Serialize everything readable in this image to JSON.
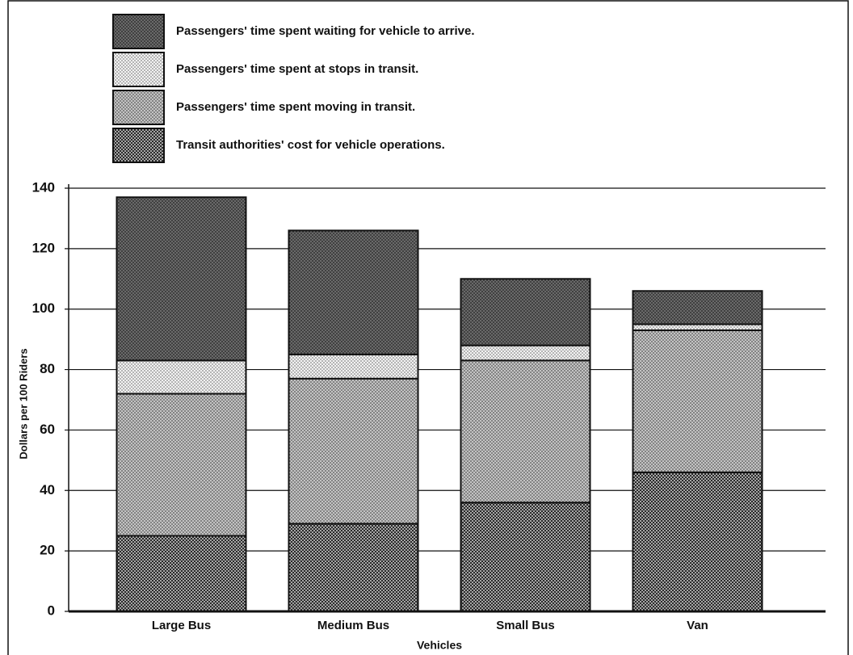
{
  "chart_data": {
    "type": "stacked_bar",
    "categories": [
      "Large Bus",
      "Medium Bus",
      "Small Bus",
      "Van"
    ],
    "series": [
      {
        "name": "Transit authorities' cost for vehicle operations.",
        "color": "#2a2a2a",
        "values": [
          25,
          29,
          36,
          46
        ]
      },
      {
        "name": "Passengers' time spent moving in transit.",
        "color": "#c4c4c4",
        "values": [
          47,
          48,
          47,
          47
        ]
      },
      {
        "name": "Passengers' time spent at stops in transit.",
        "color": "#f2f2f2",
        "values": [
          11,
          8,
          5,
          2
        ]
      },
      {
        "name": "Passengers' time spent waiting for vehicle to arrive.",
        "color": "#6a6a6a",
        "values": [
          54,
          41,
          22,
          11
        ]
      }
    ],
    "y_label": "Dollars per 100 Riders",
    "x_label": "Vehicles",
    "ylim": [
      0,
      140
    ],
    "yticks": [
      0,
      20,
      40,
      60,
      80,
      100,
      120,
      140
    ],
    "grid": true
  }
}
